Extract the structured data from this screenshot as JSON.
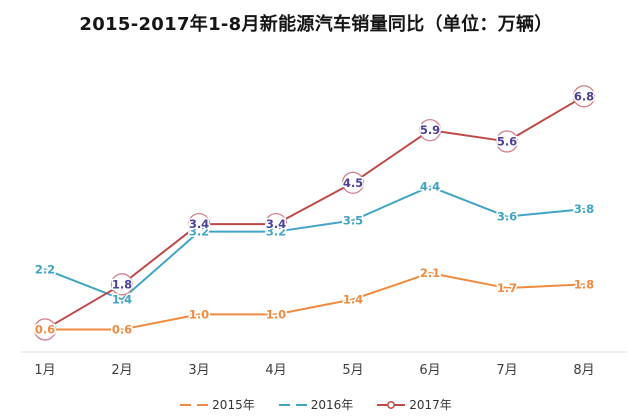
{
  "title": "2015-2017年1-8月新能源汽车销量同比（单位：万辆）",
  "chart_data": {
    "type": "line",
    "categories": [
      "1月",
      "2月",
      "3月",
      "4月",
      "5月",
      "6月",
      "7月",
      "8月"
    ],
    "series": [
      {
        "name": "2015年",
        "values": [
          0.6,
          0.6,
          1.0,
          1.0,
          1.4,
          2.1,
          1.7,
          1.8
        ],
        "color": "#EF8B41",
        "line_style": "solid",
        "marker": "none"
      },
      {
        "name": "2016年",
        "values": [
          2.2,
          1.4,
          3.2,
          3.2,
          3.5,
          4.4,
          3.6,
          3.8
        ],
        "color": "#42A4C5",
        "line_style": "solid",
        "marker": "none"
      },
      {
        "name": "2017年",
        "values": [
          0.6,
          1.8,
          3.4,
          3.4,
          4.5,
          5.9,
          5.6,
          6.8
        ],
        "color": "#BE4A47",
        "line_style": "solid",
        "marker": "circle",
        "marker_fill": "#FFFFFF",
        "marker_stroke": "#D3808C",
        "label_color": "#4C4099"
      }
    ],
    "xlabel": "",
    "ylabel": "",
    "ylim": [
      0,
      7.5
    ],
    "grid": false,
    "y_axis_visible": false,
    "legend_position": "bottom",
    "axis_color": "#DDDDDD",
    "tick_color": "#3D3D3D",
    "label_halo": "#FFFFFF"
  }
}
